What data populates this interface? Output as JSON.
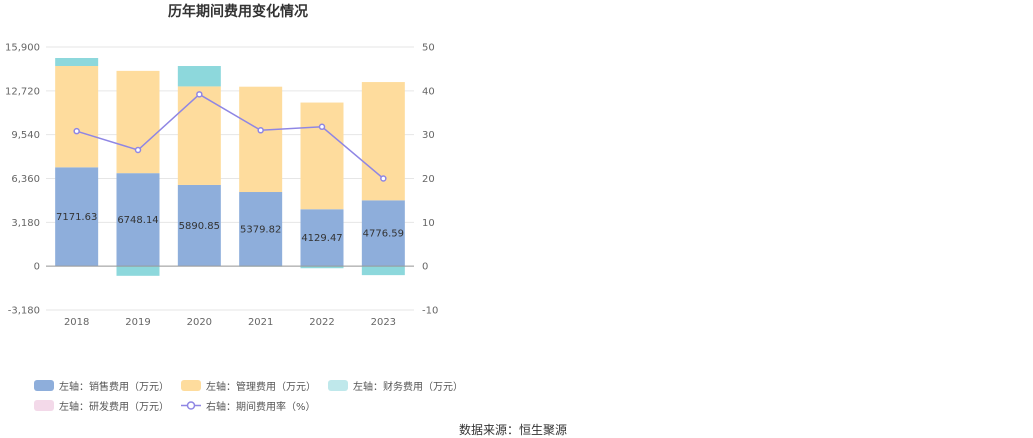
{
  "chart_data": {
    "type": "bar",
    "title": "历年期间费用变化情况",
    "categories": [
      "2018",
      "2019",
      "2020",
      "2021",
      "2022",
      "2023"
    ],
    "left_axis": {
      "ticks": [
        -3180,
        0,
        3180,
        6360,
        9540,
        12720,
        15900
      ],
      "tick_labels": [
        "-3,180",
        "0",
        "3,180",
        "6,360",
        "9,540",
        "12,720",
        "15,900"
      ],
      "ylim": [
        -3180,
        15900
      ]
    },
    "right_axis": {
      "ticks": [
        -10,
        0,
        10,
        20,
        30,
        40,
        50
      ],
      "tick_labels": [
        "-10",
        "0",
        "10",
        "20",
        "30",
        "40",
        "50"
      ],
      "ylim": [
        -10,
        50
      ]
    },
    "series": [
      {
        "name": "左轴：销售费用（万元）",
        "type": "bar",
        "axis": "left",
        "color": "#8eaedb",
        "values": [
          7171.63,
          6748.14,
          5890.85,
          5379.82,
          4129.47,
          4776.59
        ],
        "labels": [
          "7171.63",
          "6748.14",
          "5890.85",
          "5379.82",
          "4129.47",
          "4776.59"
        ]
      },
      {
        "name": "左轴：管理费用（万元）",
        "type": "bar",
        "axis": "left",
        "color": "#fedc9d",
        "values": [
          7350,
          7420,
          7150,
          7640,
          7740,
          8580
        ]
      },
      {
        "name": "左轴：财务费用（万元）",
        "type": "bar",
        "axis": "left",
        "color": "#8dd8dc",
        "values": [
          580,
          -700,
          1480,
          -20,
          -150,
          -650
        ]
      },
      {
        "name": "左轴：研发费用（万元）",
        "type": "bar",
        "axis": "left",
        "color": "#f3d9e9",
        "values": [
          0,
          0,
          0,
          0,
          0,
          0
        ]
      },
      {
        "name": "右轴：期间费用率（%）",
        "type": "line",
        "axis": "right",
        "color": "#8f86e4",
        "values": [
          30.8,
          26.5,
          39.2,
          31.0,
          31.8,
          20.0
        ]
      }
    ],
    "legend_position": "bottom-left",
    "grid": true
  },
  "source_text": "数据来源：恒生聚源"
}
